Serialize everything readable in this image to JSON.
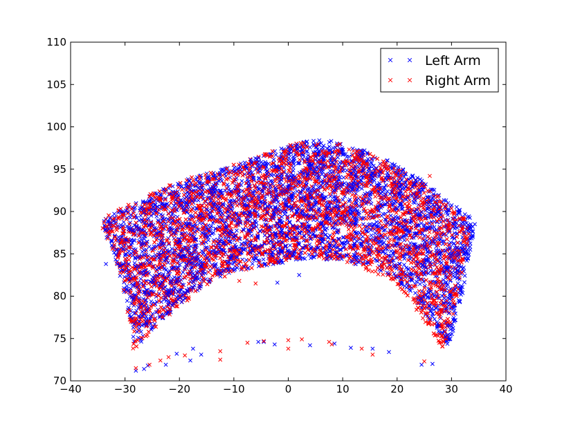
{
  "chart_data": {
    "type": "scatter",
    "title": "",
    "xlabel": "",
    "ylabel": "",
    "xlim": [
      -40,
      40
    ],
    "ylim": [
      70,
      110
    ],
    "xticks": [
      "−40",
      "−30",
      "−20",
      "−10",
      "0",
      "10",
      "20",
      "30",
      "40"
    ],
    "xtick_values": [
      -40,
      -30,
      -20,
      -10,
      0,
      10,
      20,
      30,
      40
    ],
    "yticks": [
      "70",
      "75",
      "80",
      "85",
      "90",
      "95",
      "100",
      "105",
      "110"
    ],
    "ytick_values": [
      70,
      75,
      80,
      85,
      90,
      95,
      100,
      105,
      110
    ],
    "grid": false,
    "legend_position": "top-right",
    "marker": "x",
    "series": [
      {
        "name": "Left Arm",
        "color": "#0000ff",
        "region_outline": [
          [
            -34.5,
            88.5
          ],
          [
            -33,
            89.5
          ],
          [
            -28,
            91
          ],
          [
            -24,
            92.5
          ],
          [
            -20,
            93.5
          ],
          [
            -15,
            94.5
          ],
          [
            -10,
            95.5
          ],
          [
            -5,
            96.5
          ],
          [
            0,
            97.8
          ],
          [
            5,
            98.5
          ],
          [
            10,
            98.2
          ],
          [
            15,
            97
          ],
          [
            20,
            95.5
          ],
          [
            25,
            93.5
          ],
          [
            30,
            91
          ],
          [
            34.5,
            89
          ],
          [
            33,
            84
          ],
          [
            32,
            80
          ],
          [
            29.5,
            74
          ],
          [
            25,
            78
          ],
          [
            20,
            82
          ],
          [
            15,
            83.5
          ],
          [
            10,
            84
          ],
          [
            5,
            84.5
          ],
          [
            0,
            84
          ],
          [
            -5,
            83.5
          ],
          [
            -10,
            83
          ],
          [
            -15,
            81.5
          ],
          [
            -20,
            79
          ],
          [
            -25,
            76
          ],
          [
            -28,
            73.5
          ],
          [
            -30,
            80
          ],
          [
            -32,
            85
          ]
        ],
        "sparse_points": [
          [
            -33.5,
            83.8
          ],
          [
            -28,
            71.2
          ],
          [
            -26.5,
            71.4
          ],
          [
            -25.8,
            71.8
          ],
          [
            -22.5,
            71.9
          ],
          [
            -20.5,
            73.2
          ],
          [
            -18,
            72.4
          ],
          [
            -17.5,
            73.8
          ],
          [
            -16,
            73.1
          ],
          [
            -5.5,
            74.6
          ],
          [
            -4.5,
            74.6
          ],
          [
            -2.5,
            74.3
          ],
          [
            4,
            74.2
          ],
          [
            8.5,
            74.4
          ],
          [
            11.5,
            73.9
          ],
          [
            15.5,
            73.8
          ],
          [
            18.5,
            73.4
          ],
          [
            24.5,
            71.9
          ],
          [
            26.5,
            72
          ],
          [
            -2,
            81.6
          ],
          [
            2,
            82.5
          ]
        ]
      },
      {
        "name": "Right Arm",
        "color": "#ff0000",
        "region_outline": [
          [
            -34.5,
            88.2
          ],
          [
            -33,
            89.8
          ],
          [
            -28,
            91.2
          ],
          [
            -24,
            92.5
          ],
          [
            -20,
            93.6
          ],
          [
            -15,
            94.6
          ],
          [
            -10,
            95.6
          ],
          [
            -5,
            96.6
          ],
          [
            0,
            97.9
          ],
          [
            5,
            98.4
          ],
          [
            10,
            98
          ],
          [
            15,
            96.8
          ],
          [
            20,
            95.2
          ],
          [
            25,
            93.2
          ],
          [
            30,
            90.5
          ],
          [
            33.5,
            88.5
          ],
          [
            32,
            83
          ],
          [
            30,
            77
          ],
          [
            28.5,
            73.5
          ],
          [
            25,
            77
          ],
          [
            20,
            81.5
          ],
          [
            15,
            83
          ],
          [
            10,
            84
          ],
          [
            5,
            84.6
          ],
          [
            0,
            84
          ],
          [
            -5,
            83.5
          ],
          [
            -10,
            82.8
          ],
          [
            -15,
            81.2
          ],
          [
            -20,
            78.8
          ],
          [
            -25,
            75.8
          ],
          [
            -28.5,
            73.2
          ],
          [
            -30,
            80
          ],
          [
            -32,
            85
          ]
        ],
        "sparse_points": [
          [
            -28,
            71.5
          ],
          [
            -25.5,
            71.9
          ],
          [
            -23.5,
            72.4
          ],
          [
            -22,
            72.8
          ],
          [
            -19,
            73
          ],
          [
            -12.5,
            73.5
          ],
          [
            -12.5,
            72.5
          ],
          [
            -7.5,
            74.5
          ],
          [
            -4.5,
            74.7
          ],
          [
            0,
            74.8
          ],
          [
            0,
            73.8
          ],
          [
            2.5,
            74.9
          ],
          [
            7.5,
            74.6
          ],
          [
            8,
            74.3
          ],
          [
            13.5,
            73.8
          ],
          [
            15.5,
            73.1
          ],
          [
            25,
            72.3
          ],
          [
            26,
            94.2
          ],
          [
            -9,
            81.8
          ],
          [
            -6,
            81.5
          ]
        ]
      }
    ]
  }
}
